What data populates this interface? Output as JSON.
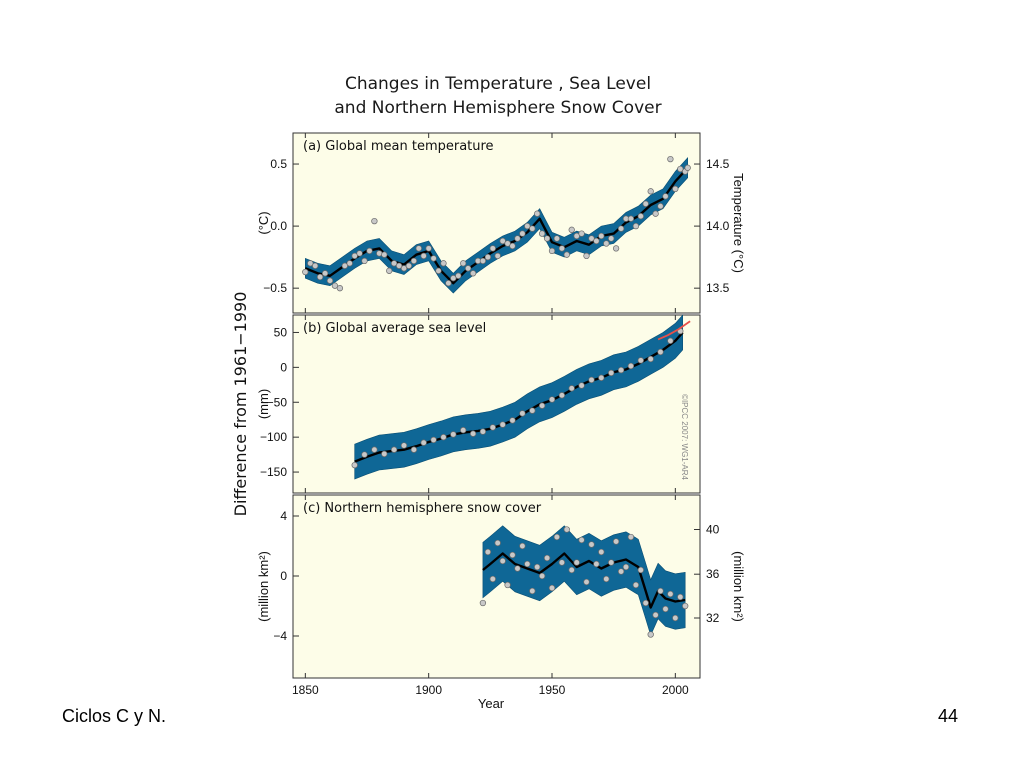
{
  "footer": {
    "left_text": "Ciclos C y N.",
    "page_number": "44"
  },
  "colors": {
    "panel_bg": "#fdfde8",
    "band": "#0f6796",
    "band_edge": "#0a4f74",
    "line": "#000000",
    "dot_fill": "#c8c8c8",
    "dot_edge": "#6a6a6a",
    "satellite": "#e8504a"
  },
  "chart_data": {
    "type": "line",
    "title_lines": [
      "Changes in Temperature , Sea Level",
      "and Northern Hemisphere Snow Cover"
    ],
    "shared_ylabel": "Difference from 1961−1990",
    "xlabel": "Year",
    "xlim": [
      1845,
      2010
    ],
    "xticks": [
      1850,
      1900,
      1950,
      2000
    ],
    "xtick_labels": [
      "1850",
      "1900",
      "1950",
      "2000"
    ],
    "copyright": "©IPCC 2007: WG1-AR4",
    "panels": [
      {
        "label": "(a) Global mean temperature",
        "ylabel_left": "(°C)",
        "ylabel_right": "Temperature (°C)",
        "ylim": [
          -0.7,
          0.75
        ],
        "yticks": [
          0.5,
          0.0,
          -0.5
        ],
        "ytick_labels": [
          "0.5",
          "0.0",
          "−0.5"
        ],
        "right_yticks": [
          0.5,
          0.0,
          -0.5
        ],
        "right_ytick_labels": [
          "14.5",
          "14.0",
          "13.5"
        ],
        "band_halfwidth": 0.08,
        "smooth": {
          "x": [
            1850,
            1855,
            1860,
            1865,
            1870,
            1875,
            1880,
            1885,
            1890,
            1895,
            1900,
            1905,
            1910,
            1915,
            1920,
            1925,
            1930,
            1935,
            1940,
            1945,
            1950,
            1955,
            1960,
            1965,
            1970,
            1975,
            1980,
            1985,
            1990,
            1995,
            2000,
            2005
          ],
          "y": [
            -0.34,
            -0.38,
            -0.4,
            -0.33,
            -0.26,
            -0.2,
            -0.18,
            -0.28,
            -0.31,
            -0.23,
            -0.2,
            -0.36,
            -0.46,
            -0.36,
            -0.29,
            -0.22,
            -0.16,
            -0.12,
            -0.05,
            0.06,
            -0.13,
            -0.17,
            -0.12,
            -0.15,
            -0.08,
            -0.06,
            0.03,
            0.08,
            0.17,
            0.22,
            0.36,
            0.47
          ]
        },
        "annual": {
          "x": [
            1850,
            1852,
            1854,
            1856,
            1858,
            1860,
            1862,
            1864,
            1866,
            1868,
            1870,
            1872,
            1874,
            1876,
            1878,
            1880,
            1882,
            1884,
            1886,
            1888,
            1890,
            1892,
            1894,
            1896,
            1898,
            1900,
            1902,
            1904,
            1906,
            1908,
            1910,
            1912,
            1914,
            1916,
            1918,
            1920,
            1922,
            1924,
            1926,
            1928,
            1930,
            1932,
            1934,
            1936,
            1938,
            1940,
            1942,
            1944,
            1946,
            1948,
            1950,
            1952,
            1954,
            1956,
            1958,
            1960,
            1962,
            1964,
            1966,
            1968,
            1970,
            1972,
            1974,
            1976,
            1978,
            1980,
            1982,
            1984,
            1986,
            1988,
            1990,
            1992,
            1994,
            1996,
            1998,
            2000,
            2002,
            2004,
            2005
          ],
          "y": [
            -0.37,
            -0.3,
            -0.32,
            -0.41,
            -0.38,
            -0.44,
            -0.48,
            -0.5,
            -0.32,
            -0.3,
            -0.24,
            -0.22,
            -0.28,
            -0.2,
            0.04,
            -0.22,
            -0.23,
            -0.36,
            -0.3,
            -0.32,
            -0.34,
            -0.32,
            -0.28,
            -0.18,
            -0.24,
            -0.18,
            -0.26,
            -0.36,
            -0.3,
            -0.46,
            -0.42,
            -0.4,
            -0.3,
            -0.34,
            -0.38,
            -0.28,
            -0.28,
            -0.25,
            -0.18,
            -0.24,
            -0.12,
            -0.14,
            -0.16,
            -0.1,
            -0.06,
            0.0,
            -0.02,
            0.1,
            -0.06,
            -0.1,
            -0.2,
            -0.1,
            -0.18,
            -0.23,
            -0.03,
            -0.08,
            -0.06,
            -0.24,
            -0.1,
            -0.12,
            -0.08,
            -0.14,
            -0.1,
            -0.18,
            -0.02,
            0.06,
            0.06,
            0.0,
            0.08,
            0.18,
            0.28,
            0.1,
            0.16,
            0.24,
            0.54,
            0.3,
            0.46,
            0.44,
            0.47
          ]
        }
      },
      {
        "label": "(b) Global average sea level",
        "ylabel_left": "(mm)",
        "ylim": [
          -180,
          75
        ],
        "yticks": [
          50,
          0,
          -50,
          -100,
          -150
        ],
        "ytick_labels": [
          "50",
          "0",
          "−50",
          "−100",
          "−150"
        ],
        "band_halfwidth": 25,
        "smooth": {
          "x": [
            1870,
            1875,
            1880,
            1885,
            1890,
            1895,
            1900,
            1905,
            1910,
            1915,
            1920,
            1925,
            1930,
            1935,
            1940,
            1945,
            1950,
            1955,
            1960,
            1965,
            1970,
            1975,
            1980,
            1985,
            1990,
            1995,
            2000,
            2003
          ],
          "y": [
            -135,
            -128,
            -122,
            -120,
            -118,
            -113,
            -107,
            -102,
            -96,
            -93,
            -91,
            -88,
            -82,
            -75,
            -63,
            -53,
            -47,
            -38,
            -28,
            -20,
            -15,
            -7,
            -3,
            5,
            15,
            25,
            38,
            50
          ]
        },
        "annual": {
          "x": [
            1870,
            1874,
            1878,
            1882,
            1886,
            1890,
            1894,
            1898,
            1902,
            1906,
            1910,
            1914,
            1918,
            1922,
            1926,
            1930,
            1934,
            1938,
            1942,
            1946,
            1950,
            1954,
            1958,
            1962,
            1966,
            1970,
            1974,
            1978,
            1982,
            1986,
            1990,
            1994,
            1998,
            2002
          ],
          "y": [
            -140,
            -125,
            -118,
            -124,
            -118,
            -112,
            -118,
            -108,
            -104,
            -100,
            -96,
            -90,
            -95,
            -92,
            -86,
            -82,
            -76,
            -66,
            -62,
            -55,
            -46,
            -40,
            -30,
            -26,
            -18,
            -15,
            -8,
            -4,
            2,
            10,
            12,
            22,
            38,
            52
          ]
        },
        "satellite": {
          "x": [
            1993,
            1997,
            2001,
            2006
          ],
          "y": [
            40,
            46,
            54,
            66
          ]
        }
      },
      {
        "label": "(c) Northern hemisphere snow cover",
        "ylabel_left": "(million km²)",
        "ylabel_right": "(million km²)",
        "ylim": [
          -6.8,
          5.4
        ],
        "yticks": [
          4,
          0,
          -4
        ],
        "ytick_labels": [
          "4",
          "0",
          "−4"
        ],
        "right_yticks": [
          3.1,
          0.12,
          -2.8
        ],
        "right_ytick_labels": [
          "40",
          "36",
          "32"
        ],
        "band_halfwidth": 1.85,
        "smooth": {
          "x": [
            1922,
            1925,
            1930,
            1935,
            1940,
            1945,
            1950,
            1955,
            1960,
            1965,
            1970,
            1975,
            1980,
            1985,
            1988,
            1990,
            1993,
            1996,
            2000,
            2004
          ],
          "y": [
            0.4,
            0.8,
            1.5,
            0.8,
            0.5,
            0.2,
            0.8,
            1.5,
            0.6,
            1.0,
            0.5,
            0.9,
            1.1,
            0.6,
            -1.0,
            -2.1,
            -1.0,
            -1.5,
            -1.7,
            -1.6
          ]
        },
        "annual": {
          "x": [
            1922,
            1924,
            1926,
            1928,
            1930,
            1932,
            1934,
            1936,
            1938,
            1940,
            1942,
            1944,
            1946,
            1948,
            1950,
            1952,
            1954,
            1956,
            1958,
            1960,
            1962,
            1964,
            1966,
            1968,
            1970,
            1972,
            1974,
            1976,
            1978,
            1980,
            1982,
            1984,
            1986,
            1988,
            1990,
            1992,
            1994,
            1996,
            1998,
            2000,
            2002,
            2004
          ],
          "y": [
            -1.8,
            1.6,
            -0.2,
            2.2,
            1.0,
            -0.6,
            1.4,
            0.5,
            2.0,
            0.8,
            -1.0,
            0.6,
            0.0,
            1.2,
            -0.8,
            2.6,
            0.9,
            3.1,
            0.4,
            0.9,
            2.4,
            -0.4,
            2.1,
            0.8,
            1.6,
            -0.2,
            0.9,
            2.3,
            0.3,
            0.6,
            2.6,
            -0.6,
            0.4,
            -1.8,
            -3.9,
            -2.6,
            -1.0,
            -2.2,
            -1.2,
            -2.8,
            -1.4,
            -2.0
          ]
        }
      }
    ]
  }
}
